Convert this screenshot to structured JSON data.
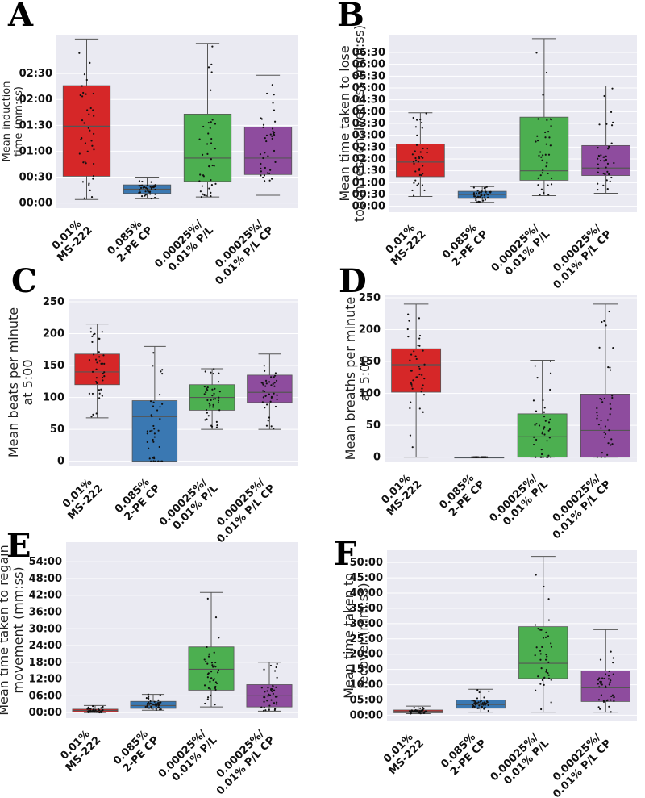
{
  "colors": {
    "plot_background": "#eaeaf2",
    "grid": "#ffffff",
    "ms222": "#d62728",
    "pe": "#3a78b2",
    "pl": "#4caf50",
    "plcp": "#8e4c9e"
  },
  "categories": [
    [
      "0.01%",
      "MS-222"
    ],
    [
      "0.085%",
      "2-PE CP"
    ],
    [
      "0.00025%/",
      "0.01% P/L"
    ],
    [
      "0.00025%/",
      "0.01% P/L CP"
    ]
  ],
  "chart_data": [
    {
      "type": "box",
      "panel": "A",
      "ylabel": [
        "Mean induction",
        "time (mm:ss)"
      ],
      "yticks": [
        "00:00",
        "00:30",
        "01:00",
        "01:30",
        "02:00",
        "02:30"
      ],
      "ytick_values_sec": [
        0,
        30,
        60,
        90,
        120,
        150
      ],
      "ylim_sec": [
        -6,
        195
      ],
      "grid": true,
      "boxes": [
        {
          "whisker_low": 4,
          "q1": 31,
          "median": 89,
          "q3": 136,
          "whisker_high": 190
        },
        {
          "whisker_low": 5,
          "q1": 11,
          "median": 16,
          "q3": 21,
          "whisker_high": 30
        },
        {
          "whisker_low": 7,
          "q1": 25,
          "median": 52,
          "q3": 103,
          "whisker_high": 185
        },
        {
          "whisker_low": 9,
          "q1": 33,
          "median": 52,
          "q3": 88,
          "whisker_high": 148
        }
      ]
    },
    {
      "type": "box",
      "panel": "B",
      "ylabel": [
        "Mean time taken to lose",
        "touch responsiveness (mm:ss)"
      ],
      "yticks": [
        "00:00",
        "00:30",
        "01:00",
        "01:30",
        "02:00",
        "02:30",
        "03:00",
        "03:30",
        "04:00",
        "04:30",
        "05:00",
        "05:30",
        "06:00",
        "06:30"
      ],
      "ytick_values_sec": [
        0,
        30,
        60,
        90,
        120,
        150,
        180,
        210,
        240,
        270,
        300,
        330,
        360,
        390
      ],
      "ylim_sec": [
        -15,
        435
      ],
      "grid": true,
      "boxes": [
        {
          "whisker_low": 25,
          "q1": 75,
          "median": 112,
          "q3": 158,
          "whisker_high": 237
        },
        {
          "whisker_low": 10,
          "q1": 20,
          "median": 30,
          "q3": 38,
          "whisker_high": 50
        },
        {
          "whisker_low": 27,
          "q1": 66,
          "median": 90,
          "q3": 226,
          "whisker_high": 425
        },
        {
          "whisker_low": 33,
          "q1": 78,
          "median": 97,
          "q3": 154,
          "whisker_high": 305
        }
      ]
    },
    {
      "type": "box",
      "panel": "C",
      "ylabel": [
        "Mean beats per minute",
        "at 5:00"
      ],
      "yticks": [
        "0",
        "50",
        "100",
        "150",
        "200",
        "250"
      ],
      "ytick_values": [
        0,
        50,
        100,
        150,
        200,
        250
      ],
      "ylim": [
        -8,
        255
      ],
      "grid": true,
      "boxes": [
        {
          "whisker_low": 68,
          "q1": 120,
          "median": 140,
          "q3": 168,
          "whisker_high": 215
        },
        {
          "whisker_low": 0,
          "q1": 0,
          "median": 70,
          "q3": 95,
          "whisker_high": 180
        },
        {
          "whisker_low": 50,
          "q1": 80,
          "median": 100,
          "q3": 120,
          "whisker_high": 145
        },
        {
          "whisker_low": 50,
          "q1": 92,
          "median": 108,
          "q3": 135,
          "whisker_high": 168
        }
      ]
    },
    {
      "type": "box",
      "panel": "D",
      "ylabel": [
        "Mean breaths per minute",
        "at 5:00"
      ],
      "yticks": [
        "0",
        "50",
        "100",
        "150",
        "200",
        "250"
      ],
      "ytick_values": [
        0,
        50,
        100,
        150,
        200,
        250
      ],
      "ylim": [
        -8,
        255
      ],
      "grid": true,
      "boxes": [
        {
          "whisker_low": 0,
          "q1": 102,
          "median": 145,
          "q3": 170,
          "whisker_high": 240
        },
        {
          "whisker_low": 0,
          "q1": 0,
          "median": 0,
          "q3": 0,
          "whisker_high": 0
        },
        {
          "whisker_low": 0,
          "q1": 0,
          "median": 32,
          "q3": 68,
          "whisker_high": 152
        },
        {
          "whisker_low": 0,
          "q1": 0,
          "median": 42,
          "q3": 99,
          "whisker_high": 240
        }
      ]
    },
    {
      "type": "box",
      "panel": "E",
      "ylabel": [
        "Mean time taken to regain",
        "movement (mm:ss)"
      ],
      "yticks": [
        "00:00",
        "06:00",
        "12:00",
        "18:00",
        "24:00",
        "30:00",
        "36:00",
        "42:00",
        "48:00",
        "54:00"
      ],
      "ytick_values_min": [
        0,
        6,
        12,
        18,
        24,
        30,
        36,
        42,
        48,
        54
      ],
      "ylim_min": [
        -2,
        61
      ],
      "grid": true,
      "boxes": [
        {
          "whisker_low": 0,
          "q1": 0.2,
          "median": 0.7,
          "q3": 1.2,
          "whisker_high": 2.5
        },
        {
          "whisker_low": 0.8,
          "q1": 1.5,
          "median": 2.5,
          "q3": 4.0,
          "whisker_high": 6.5
        },
        {
          "whisker_low": 2,
          "q1": 8,
          "median": 15.5,
          "q3": 23.5,
          "whisker_high": 43
        },
        {
          "whisker_low": 0.5,
          "q1": 2,
          "median": 6,
          "q3": 10,
          "whisker_high": 18
        }
      ]
    },
    {
      "type": "box",
      "panel": "F",
      "ylabel": [
        "Mean time taken to",
        "recover (mm:ss)"
      ],
      "yticks": [
        "00:00",
        "05:00",
        "10:00",
        "15:00",
        "20:00",
        "25:00",
        "30:00",
        "35:00",
        "40:00",
        "45:00",
        "50:00"
      ],
      "ytick_values_min": [
        0,
        5,
        10,
        15,
        20,
        25,
        30,
        35,
        40,
        45,
        50
      ],
      "ylim_min": [
        -2,
        54
      ],
      "grid": true,
      "boxes": [
        {
          "whisker_low": 0.5,
          "q1": 0.8,
          "median": 1.2,
          "q3": 1.7,
          "whisker_high": 3
        },
        {
          "whisker_low": 1,
          "q1": 2.3,
          "median": 3.5,
          "q3": 5,
          "whisker_high": 8.5
        },
        {
          "whisker_low": 1,
          "q1": 12,
          "median": 17,
          "q3": 29,
          "whisker_high": 52
        },
        {
          "whisker_low": 1,
          "q1": 4.5,
          "median": 9,
          "q3": 14.5,
          "whisker_high": 28
        }
      ]
    }
  ]
}
